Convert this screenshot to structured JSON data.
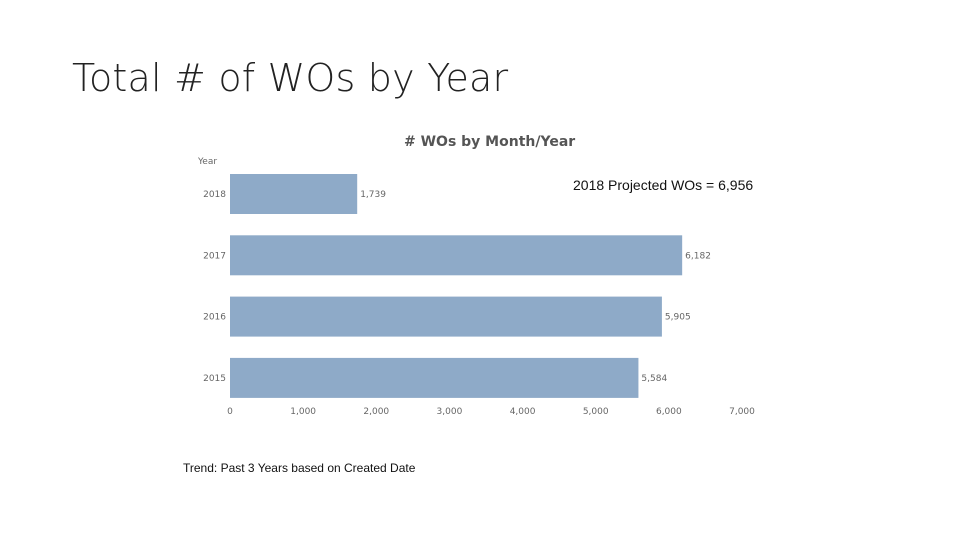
{
  "slide": {
    "title": "Total # of WOs by Year",
    "annotation": "2018 Projected WOs = 6,956",
    "footnote": "Trend: Past 3 Years based on Created Date"
  },
  "chart_data": {
    "type": "bar",
    "orientation": "horizontal",
    "title": "# WOs by Month/Year",
    "ylabel": "Year",
    "xlabel": "",
    "categories": [
      "2018",
      "2017",
      "2016",
      "2015"
    ],
    "values": [
      1739,
      6182,
      5905,
      5584
    ],
    "value_labels": [
      "1,739",
      "6,182",
      "5,905",
      "5,584"
    ],
    "xlim": [
      0,
      7000
    ],
    "xticks": [
      0,
      1000,
      2000,
      3000,
      4000,
      5000,
      6000,
      7000
    ],
    "xtick_labels": [
      "0",
      "1,000",
      "2,000",
      "3,000",
      "4,000",
      "5,000",
      "6,000",
      "7,000"
    ],
    "bar_color": "#8eaac8",
    "grid": false,
    "legend": "none"
  }
}
